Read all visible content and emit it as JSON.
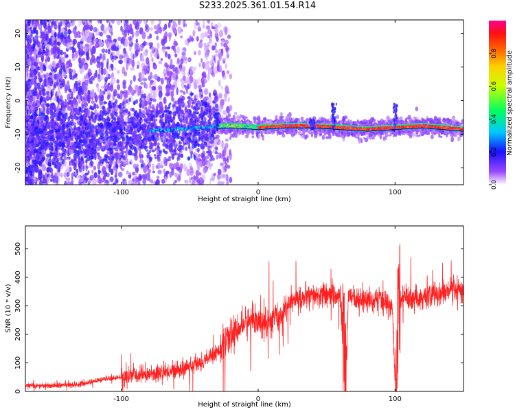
{
  "figure_title": "S233.2025.361.01.54.R14",
  "chart_data": [
    {
      "type": "heatmap",
      "title": "S233.2025.361.01.54.R14",
      "xlabel": "Height of straight line (km)",
      "ylabel": "Frequency (Hz)",
      "xlim": [
        -170,
        150
      ],
      "ylim": [
        -25,
        24
      ],
      "xticks": [
        -100,
        0,
        100
      ],
      "yticks": [
        -20,
        -10,
        0,
        10,
        20
      ],
      "colorbar": {
        "label": "Normalized spectral amplitude",
        "range": [
          0,
          1
        ],
        "ticks": [
          0.0,
          0.2,
          0.4,
          0.6,
          0.8
        ]
      },
      "ridge": {
        "description_points_x": [
          -170,
          -120,
          -80,
          -40,
          -20,
          0,
          20,
          40,
          60,
          80,
          100,
          120,
          150
        ],
        "description_points_y": [
          -10,
          -10,
          -9,
          -8,
          -7.5,
          -8,
          -7.5,
          -7.5,
          -8,
          -8.5,
          -8,
          -7.5,
          -8.5
        ]
      },
      "grid": false
    },
    {
      "type": "line",
      "xlabel": "Height of straight line (km)",
      "ylabel": "SNR (10 * v/v)",
      "xlim": [
        -170,
        150
      ],
      "ylim": [
        0,
        580
      ],
      "xticks": [
        -100,
        0,
        100
      ],
      "yticks": [
        0,
        100,
        200,
        300,
        400,
        500
      ],
      "series": [
        {
          "color": "#ff2020",
          "x": [
            -170,
            -150,
            -130,
            -110,
            -90,
            -70,
            -55,
            -45,
            -35,
            -25,
            -15,
            -5,
            5,
            15,
            25,
            35,
            45,
            55,
            60,
            64,
            66,
            70,
            80,
            90,
            98,
            100,
            103,
            106,
            112,
            120,
            130,
            140,
            150
          ],
          "y": [
            20,
            20,
            25,
            45,
            55,
            65,
            80,
            95,
            120,
            160,
            220,
            250,
            235,
            260,
            320,
            330,
            335,
            340,
            330,
            60,
            340,
            325,
            320,
            320,
            300,
            30,
            300,
            330,
            320,
            330,
            340,
            350,
            350
          ]
        }
      ],
      "grid": false
    }
  ]
}
